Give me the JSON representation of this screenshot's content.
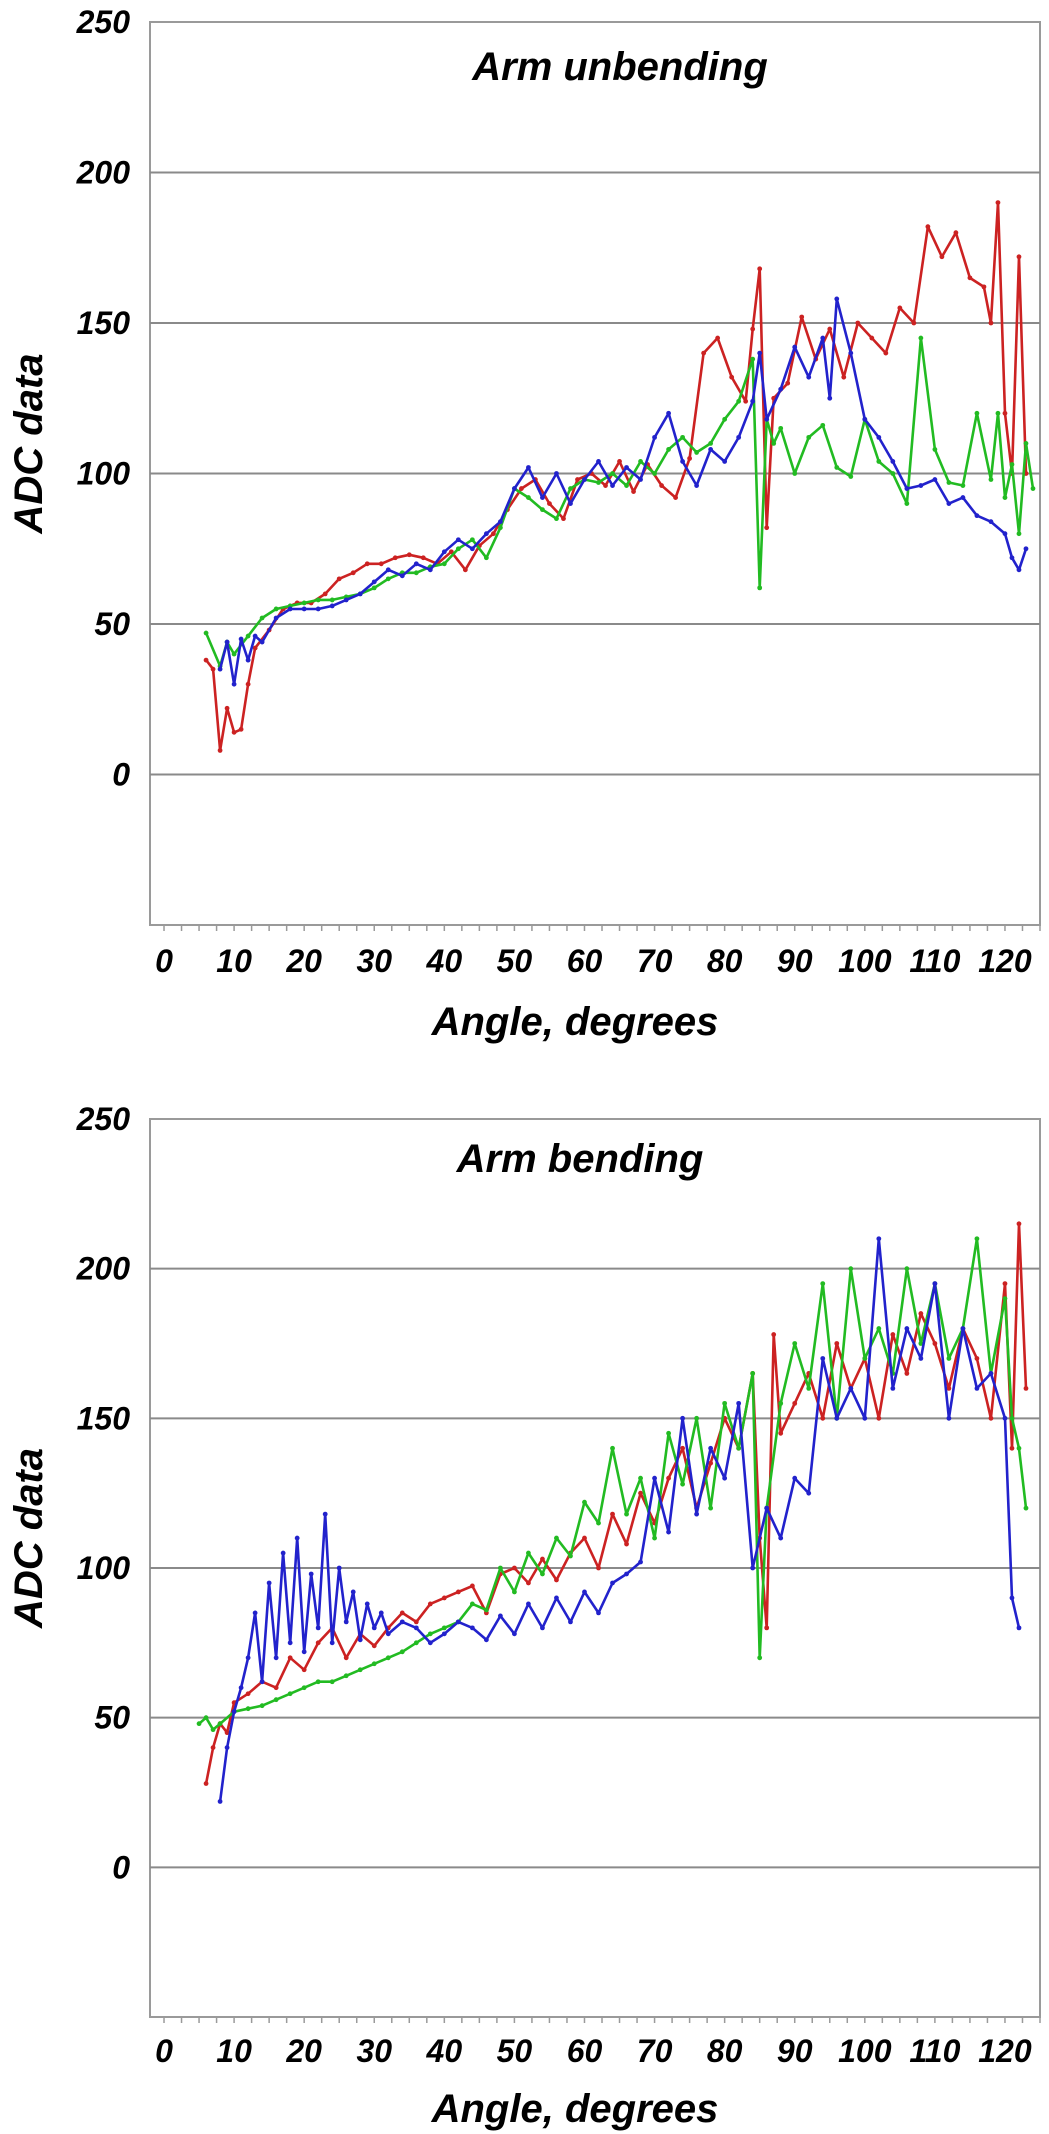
{
  "chart_data": [
    {
      "type": "line",
      "title": "Arm unbending",
      "xlabel": "Angle, degrees",
      "ylabel": "ADC data",
      "xlim": [
        -2,
        125
      ],
      "ylim": [
        -50,
        250
      ],
      "xticks": [
        "0",
        "10",
        "20",
        "30",
        "40",
        "50",
        "60",
        "70",
        "80",
        "90",
        "100",
        "110",
        "120"
      ],
      "yticks": [
        "0",
        "50",
        "100",
        "150",
        "200",
        "250"
      ],
      "gridlines_y": [
        0,
        50,
        100,
        150,
        200
      ],
      "grid": "horizontal",
      "series": [
        {
          "color": "#cc2222",
          "x": [
            6,
            7,
            8,
            9,
            10,
            11,
            12,
            13,
            15,
            17,
            19,
            21,
            23,
            25,
            27,
            29,
            31,
            33,
            35,
            37,
            39,
            41,
            43,
            45,
            47,
            49,
            51,
            53,
            55,
            57,
            59,
            61,
            63,
            65,
            67,
            69,
            71,
            73,
            75,
            77,
            79,
            81,
            83,
            84,
            85,
            86,
            87,
            89,
            91,
            93,
            95,
            97,
            99,
            101,
            103,
            105,
            107,
            109,
            111,
            113,
            115,
            117,
            118,
            119,
            120,
            121,
            122,
            123
          ],
          "y": [
            38,
            35,
            8,
            22,
            14,
            15,
            30,
            42,
            48,
            55,
            57,
            57,
            60,
            65,
            67,
            70,
            70,
            72,
            73,
            72,
            70,
            74,
            68,
            76,
            80,
            88,
            95,
            98,
            90,
            85,
            98,
            100,
            96,
            104,
            94,
            103,
            96,
            92,
            105,
            140,
            145,
            132,
            124,
            148,
            168,
            82,
            125,
            130,
            152,
            138,
            148,
            132,
            150,
            145,
            140,
            155,
            150,
            182,
            172,
            180,
            165,
            162,
            150,
            190,
            120,
            100,
            172,
            100
          ]
        },
        {
          "color": "#22bb22",
          "x": [
            6,
            8,
            9,
            10,
            12,
            14,
            16,
            18,
            20,
            22,
            24,
            26,
            28,
            30,
            32,
            34,
            36,
            38,
            40,
            42,
            44,
            46,
            48,
            50,
            52,
            54,
            56,
            58,
            60,
            62,
            64,
            66,
            68,
            70,
            72,
            74,
            76,
            78,
            80,
            82,
            84,
            85,
            86,
            87,
            88,
            90,
            92,
            94,
            96,
            98,
            100,
            102,
            104,
            106,
            108,
            110,
            112,
            114,
            116,
            118,
            119,
            120,
            121,
            122,
            123,
            124
          ],
          "y": [
            47,
            36,
            44,
            40,
            46,
            52,
            55,
            56,
            57,
            58,
            58,
            59,
            60,
            62,
            65,
            67,
            67,
            69,
            70,
            75,
            78,
            72,
            82,
            95,
            92,
            88,
            85,
            95,
            98,
            97,
            100,
            96,
            104,
            100,
            108,
            112,
            107,
            110,
            118,
            124,
            138,
            62,
            118,
            110,
            115,
            100,
            112,
            116,
            102,
            99,
            118,
            104,
            100,
            90,
            145,
            108,
            97,
            96,
            120,
            98,
            120,
            92,
            103,
            80,
            110,
            95
          ]
        },
        {
          "color": "#2222cc",
          "x": [
            8,
            9,
            10,
            11,
            12,
            13,
            14,
            16,
            18,
            20,
            22,
            24,
            26,
            28,
            30,
            32,
            34,
            36,
            38,
            40,
            42,
            44,
            46,
            48,
            50,
            52,
            54,
            56,
            58,
            60,
            62,
            64,
            66,
            68,
            70,
            72,
            74,
            76,
            78,
            80,
            82,
            84,
            85,
            86,
            88,
            90,
            92,
            94,
            95,
            96,
            98,
            100,
            102,
            104,
            106,
            108,
            110,
            112,
            114,
            116,
            118,
            120,
            121,
            122,
            123
          ],
          "y": [
            35,
            44,
            30,
            45,
            38,
            46,
            44,
            52,
            55,
            55,
            55,
            56,
            58,
            60,
            64,
            68,
            66,
            70,
            68,
            74,
            78,
            75,
            80,
            84,
            95,
            102,
            92,
            100,
            90,
            98,
            104,
            96,
            102,
            98,
            112,
            120,
            104,
            96,
            108,
            104,
            112,
            124,
            140,
            118,
            128,
            142,
            132,
            145,
            125,
            158,
            140,
            118,
            112,
            104,
            95,
            96,
            98,
            90,
            92,
            86,
            84,
            80,
            72,
            68,
            75
          ]
        }
      ]
    },
    {
      "type": "line",
      "title": "Arm bending",
      "xlabel": "Angle, degrees",
      "ylabel": "ADC data",
      "xlim": [
        -2,
        125
      ],
      "ylim": [
        -50,
        250
      ],
      "xticks": [
        "0",
        "10",
        "20",
        "30",
        "40",
        "50",
        "60",
        "70",
        "80",
        "90",
        "100",
        "110",
        "120"
      ],
      "yticks": [
        "0",
        "50",
        "100",
        "150",
        "200",
        "250"
      ],
      "gridlines_y": [
        0,
        50,
        100,
        150,
        200
      ],
      "grid": "horizontal",
      "series": [
        {
          "color": "#cc2222",
          "x": [
            6,
            7,
            8,
            9,
            10,
            12,
            14,
            16,
            18,
            20,
            22,
            24,
            26,
            28,
            30,
            32,
            34,
            36,
            38,
            40,
            42,
            44,
            46,
            48,
            50,
            52,
            54,
            56,
            58,
            60,
            62,
            64,
            66,
            68,
            70,
            72,
            74,
            76,
            78,
            80,
            82,
            84,
            85,
            86,
            87,
            88,
            90,
            92,
            94,
            96,
            98,
            100,
            102,
            104,
            106,
            108,
            110,
            112,
            114,
            116,
            118,
            120,
            121,
            122,
            123
          ],
          "y": [
            28,
            40,
            48,
            45,
            55,
            58,
            62,
            60,
            70,
            66,
            75,
            80,
            70,
            78,
            74,
            80,
            85,
            82,
            88,
            90,
            92,
            94,
            85,
            98,
            100,
            95,
            103,
            96,
            105,
            110,
            100,
            118,
            108,
            125,
            115,
            130,
            140,
            120,
            135,
            150,
            140,
            165,
            110,
            80,
            178,
            145,
            155,
            165,
            150,
            175,
            160,
            170,
            150,
            178,
            165,
            185,
            175,
            160,
            180,
            170,
            150,
            195,
            140,
            215,
            160
          ]
        },
        {
          "color": "#22bb22",
          "x": [
            5,
            6,
            7,
            8,
            10,
            12,
            14,
            16,
            18,
            20,
            22,
            24,
            26,
            28,
            30,
            32,
            34,
            36,
            38,
            40,
            42,
            44,
            46,
            48,
            50,
            52,
            54,
            56,
            58,
            60,
            62,
            64,
            66,
            68,
            70,
            72,
            74,
            76,
            78,
            80,
            82,
            84,
            85,
            86,
            88,
            90,
            92,
            94,
            96,
            98,
            100,
            102,
            104,
            106,
            108,
            110,
            112,
            114,
            116,
            118,
            120,
            121,
            122,
            123
          ],
          "y": [
            48,
            50,
            46,
            48,
            52,
            53,
            54,
            56,
            58,
            60,
            62,
            62,
            64,
            66,
            68,
            70,
            72,
            75,
            78,
            80,
            82,
            88,
            86,
            100,
            92,
            105,
            98,
            110,
            104,
            122,
            115,
            140,
            118,
            130,
            110,
            145,
            128,
            150,
            120,
            155,
            140,
            165,
            70,
            120,
            155,
            175,
            160,
            195,
            150,
            200,
            170,
            180,
            165,
            200,
            175,
            195,
            170,
            180,
            210,
            165,
            190,
            150,
            140,
            120
          ]
        },
        {
          "color": "#2222cc",
          "x": [
            8,
            9,
            10,
            11,
            12,
            13,
            14,
            15,
            16,
            17,
            18,
            19,
            20,
            21,
            22,
            23,
            24,
            25,
            26,
            27,
            28,
            29,
            30,
            31,
            32,
            34,
            36,
            38,
            40,
            42,
            44,
            46,
            48,
            50,
            52,
            54,
            56,
            58,
            60,
            62,
            64,
            66,
            68,
            70,
            72,
            74,
            76,
            78,
            80,
            82,
            84,
            86,
            88,
            90,
            92,
            94,
            96,
            98,
            100,
            102,
            104,
            106,
            108,
            110,
            112,
            114,
            116,
            118,
            120,
            121,
            122
          ],
          "y": [
            22,
            40,
            52,
            60,
            70,
            85,
            62,
            95,
            70,
            105,
            75,
            110,
            72,
            98,
            80,
            118,
            75,
            100,
            82,
            92,
            76,
            88,
            80,
            85,
            78,
            82,
            80,
            75,
            78,
            82,
            80,
            76,
            84,
            78,
            88,
            80,
            90,
            82,
            92,
            85,
            95,
            98,
            102,
            130,
            112,
            150,
            118,
            140,
            130,
            155,
            100,
            120,
            110,
            130,
            125,
            170,
            150,
            160,
            150,
            210,
            160,
            180,
            170,
            195,
            150,
            180,
            160,
            165,
            150,
            90,
            80
          ]
        }
      ]
    }
  ]
}
